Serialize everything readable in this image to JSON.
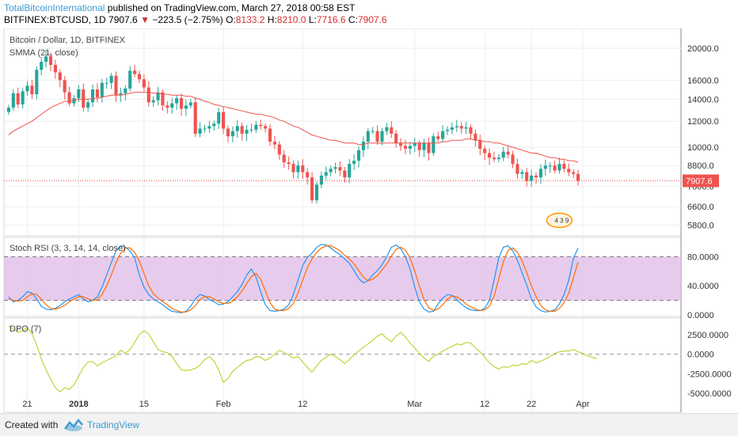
{
  "header": {
    "author": "TotalBitcoinInternational",
    "published": "published on TradingView.com, March 27, 2018 00:58 EST",
    "symbol": "BITFINEX:BTCUSD, 1D",
    "last": "7907.6",
    "change": "−223.5 (−2.75%)",
    "o_label": "O:",
    "o_val": "8133.2",
    "h_label": "H:",
    "h_val": "8210.0",
    "l_label": "L:",
    "l_val": "7716.6",
    "c_label": "C:",
    "c_val": "7907.6"
  },
  "footer": {
    "created_with": "Created with",
    "brand": "TradingView"
  },
  "colors": {
    "up": "#26a69a",
    "down": "#ef5350",
    "sma": "#ef5350",
    "k_line": "#2196f3",
    "d_line": "#ff6d00",
    "rsi_band": "#e1bee7",
    "dpo": "#c0d43a",
    "price_tag": "#ef5350"
  },
  "chart_data": [
    {
      "type": "candlestick",
      "title": "Bitcoin / Dollar, 1D, BITFINEX",
      "indicator": "SMMA (21, close)",
      "ylim": [
        5500,
        21500
      ],
      "y_scale": "log",
      "y_ticks": [
        "20000.0",
        "16000.0",
        "14000.0",
        "12000.0",
        "10000.0",
        "8800.0",
        "7600.0",
        "6600.0",
        "5800.0"
      ],
      "y_tick_values": [
        20000,
        16000,
        14000,
        12000,
        10000,
        8800,
        7600,
        6600,
        5800
      ],
      "x_ticks": [
        "21",
        "2018",
        "15",
        "Feb",
        "12",
        "Mar",
        "12",
        "22",
        "Apr"
      ],
      "x_tick_days": [
        4,
        15,
        29,
        46,
        63,
        87,
        102,
        112,
        123
      ],
      "last_price_label": "7907.6",
      "badge": "4 3 9",
      "close": [
        13200,
        14600,
        13500,
        14800,
        15400,
        14500,
        17200,
        18200,
        18900,
        17800,
        16900,
        16000,
        14700,
        13600,
        14100,
        15000,
        13200,
        13700,
        15000,
        14200,
        15700,
        15700,
        16500,
        14400,
        14600,
        15100,
        17100,
        16700,
        16100,
        15200,
        13700,
        13900,
        14700,
        13400,
        13200,
        13600,
        14100,
        13100,
        13400,
        13700,
        11000,
        11400,
        11400,
        11600,
        11800,
        12800,
        11400,
        10800,
        11200,
        11600,
        11000,
        11300,
        11300,
        11700,
        11600,
        11400,
        10400,
        10200,
        9500,
        9000,
        8900,
        8400,
        8800,
        8400,
        8100,
        6900,
        7700,
        8200,
        8400,
        8600,
        8700,
        8500,
        8100,
        8900,
        9100,
        9800,
        10400,
        11200,
        11200,
        10400,
        11200,
        11500,
        11000,
        10300,
        10100,
        9900,
        10100,
        10300,
        9800,
        10300,
        9600,
        10800,
        10600,
        11200,
        11300,
        11500,
        11600,
        11400,
        11500,
        11000,
        10500,
        9900,
        9600,
        9300,
        9200,
        9300,
        9700,
        9500,
        8900,
        8300,
        8400,
        7900,
        8200,
        8100,
        8600,
        8800,
        8800,
        8500,
        8900,
        8600,
        8400,
        8300,
        7900
      ],
      "smma": [
        10900,
        11200,
        11400,
        11600,
        11800,
        12000,
        12300,
        12600,
        12900,
        13200,
        13400,
        13600,
        13800,
        13800,
        13900,
        14000,
        14000,
        14000,
        14100,
        14100,
        14200,
        14300,
        14400,
        14400,
        14400,
        14500,
        14600,
        14700,
        14700,
        14700,
        14700,
        14600,
        14600,
        14500,
        14500,
        14400,
        14400,
        14400,
        14300,
        14300,
        14100,
        14000,
        13800,
        13700,
        13500,
        13400,
        13300,
        13200,
        13100,
        13000,
        12900,
        12800,
        12700,
        12600,
        12600,
        12500,
        12400,
        12300,
        12100,
        12000,
        11800,
        11600,
        11500,
        11300,
        11100,
        10900,
        10800,
        10700,
        10600,
        10500,
        10500,
        10400,
        10300,
        10300,
        10300,
        10200,
        10200,
        10300,
        10300,
        10300,
        10300,
        10300,
        10300,
        10300,
        10300,
        10300,
        10300,
        10300,
        10300,
        10300,
        10300,
        10300,
        10300,
        10400,
        10400,
        10500,
        10500,
        10500,
        10600,
        10600,
        10500,
        10500,
        10400,
        10400,
        10300,
        10300,
        10200,
        10100,
        10000,
        9900,
        9800,
        9700,
        9600,
        9600,
        9500,
        9400,
        9300,
        9300,
        9200,
        9200,
        9100,
        9100,
        9000
      ]
    },
    {
      "type": "line",
      "title": "Stoch RSI (3, 3, 14, 14, close)",
      "ylim": [
        0,
        100
      ],
      "y_ticks": [
        "80.0000",
        "40.0000",
        "0.0000"
      ],
      "y_tick_values": [
        80,
        40,
        0
      ],
      "band": [
        20,
        80
      ],
      "series": [
        {
          "name": "K",
          "values": [
            25,
            18,
            20,
            25,
            32,
            30,
            22,
            12,
            8,
            7,
            9,
            13,
            18,
            22,
            25,
            28,
            22,
            18,
            20,
            25,
            38,
            55,
            72,
            88,
            95,
            93,
            88,
            78,
            55,
            38,
            28,
            22,
            18,
            14,
            9,
            5,
            4,
            3,
            5,
            12,
            22,
            28,
            26,
            21,
            18,
            14,
            15,
            18,
            25,
            32,
            42,
            55,
            63,
            52,
            32,
            14,
            6,
            5,
            6,
            8,
            14,
            28,
            48,
            68,
            79,
            85,
            93,
            97,
            96,
            92,
            87,
            83,
            77,
            71,
            61,
            50,
            44,
            47,
            55,
            61,
            69,
            80,
            93,
            96,
            91,
            80,
            63,
            38,
            18,
            8,
            4,
            5,
            15,
            23,
            28,
            27,
            21,
            15,
            10,
            7,
            6,
            6,
            9,
            20,
            48,
            78,
            93,
            95,
            88,
            75,
            58,
            41,
            22,
            11,
            6,
            4,
            5,
            7,
            15,
            28,
            48,
            78,
            92
          ],
          "raw_note": ""
        },
        {
          "name": "D",
          "values": [
            22,
            20,
            19,
            20,
            25,
            29,
            28,
            22,
            14,
            9,
            8,
            10,
            13,
            18,
            22,
            25,
            25,
            22,
            20,
            21,
            28,
            40,
            55,
            72,
            85,
            92,
            92,
            86,
            74,
            57,
            40,
            29,
            23,
            18,
            14,
            9,
            6,
            4,
            4,
            7,
            13,
            21,
            25,
            25,
            22,
            18,
            16,
            16,
            19,
            25,
            33,
            43,
            53,
            57,
            49,
            33,
            17,
            8,
            6,
            6,
            9,
            16,
            30,
            48,
            65,
            77,
            86,
            92,
            95,
            95,
            92,
            88,
            82,
            77,
            70,
            61,
            52,
            47,
            49,
            54,
            62,
            70,
            81,
            90,
            93,
            89,
            78,
            60,
            40,
            21,
            10,
            6,
            8,
            14,
            22,
            26,
            25,
            21,
            15,
            11,
            8,
            6,
            7,
            12,
            26,
            49,
            73,
            89,
            92,
            86,
            74,
            58,
            40,
            25,
            13,
            7,
            5,
            5,
            9,
            17,
            30,
            51,
            73
          ]
        }
      ]
    },
    {
      "type": "line",
      "title": "DPO (7)",
      "ylim": [
        -5500,
        4000
      ],
      "y_ticks": [
        "2500.0000",
        "0.0000",
        "-2500.0000",
        "-5000.0000"
      ],
      "y_tick_values": [
        2500,
        0,
        -2500,
        -5000
      ],
      "series": [
        {
          "name": "DPO",
          "values": [
            3600,
            3200,
            2800,
            3000,
            3400,
            2600,
            1200,
            -600,
            -2000,
            -3200,
            -4300,
            -4800,
            -4300,
            -4500,
            -3900,
            -2800,
            -1700,
            -1000,
            -900,
            -1500,
            -1100,
            -800,
            -500,
            -200,
            500,
            100,
            600,
            1500,
            2500,
            3000,
            2600,
            1600,
            600,
            300,
            200,
            -300,
            -1200,
            -2000,
            -2100,
            -2000,
            -1800,
            -1400,
            -700,
            -300,
            -900,
            -2000,
            -3600,
            -3100,
            -2200,
            -1700,
            -1200,
            -800,
            -700,
            -300,
            -400,
            -800,
            -500,
            0,
            500,
            200,
            -100,
            -500,
            -300,
            -1000,
            -1700,
            -2300,
            -1500,
            -800,
            -400,
            0,
            -300,
            -700,
            -1200,
            -700,
            -100,
            400,
            900,
            1300,
            1800,
            2300,
            2600,
            2000,
            1600,
            2300,
            2800,
            2200,
            1400,
            800,
            100,
            -500,
            -900,
            -300,
            0,
            400,
            700,
            1000,
            1300,
            1200,
            1500,
            1400,
            800,
            300,
            -400,
            -1100,
            -1600,
            -1900,
            -1600,
            -1700,
            -1400,
            -1500,
            -1200,
            -1300,
            -800,
            -1100,
            -900,
            -600,
            -300,
            100,
            300,
            400,
            400,
            600,
            300,
            100,
            -200,
            -400,
            -600
          ]
        }
      ]
    }
  ]
}
